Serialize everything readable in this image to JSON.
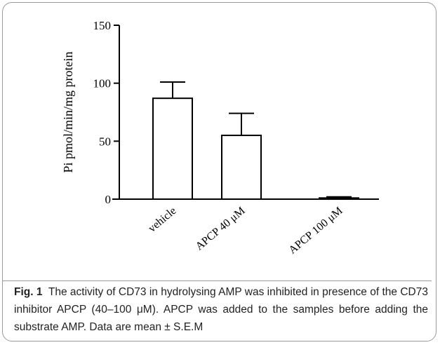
{
  "chart_data": {
    "type": "bar",
    "categories": [
      "vehicle",
      "APCP 40 μM",
      "APCP 100 μM"
    ],
    "values": [
      87,
      55,
      1
    ],
    "error": [
      14,
      19,
      1
    ],
    "ylabel": "Pi pmol/min/mg protein",
    "xlabel": "",
    "ylim": [
      0,
      150
    ],
    "yticks": [
      0,
      50,
      100,
      150
    ],
    "grid": false,
    "legend": "none"
  },
  "caption": {
    "label": "Fig. 1",
    "text": "The activity of CD73 in hydrolysing AMP was inhibited in presence of the CD73 inhibitor APCP (40–100 μM). APCP was added to the samples before adding the substrate AMP. Data are mean ± S.E.M"
  },
  "colors": {
    "bar_fill": "#ffffff",
    "bar_stroke": "#000000",
    "frame": "#9a9a9a"
  }
}
